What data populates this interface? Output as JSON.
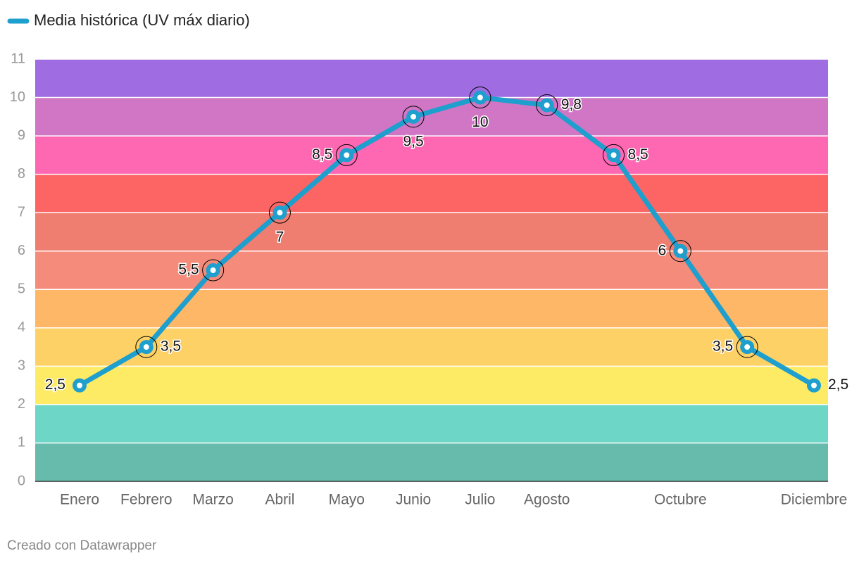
{
  "chart_data": {
    "type": "line",
    "categories": [
      "Enero",
      "Febrero",
      "Marzo",
      "Abril",
      "Mayo",
      "Junio",
      "Julio",
      "Agosto",
      null,
      "Octubre",
      null,
      "Diciembre"
    ],
    "series": [
      {
        "name": "Media histórica (UV máx diario)",
        "color": "#1e9fcd",
        "values": [
          2.5,
          3.5,
          5.5,
          7,
          8.5,
          9.5,
          10,
          9.8,
          8.5,
          6,
          3.5,
          2.5
        ],
        "value_labels": [
          "2,5",
          "3,5",
          "5,5",
          "7",
          "8,5",
          "9,5",
          "10",
          "9,8",
          "8,5",
          "6",
          "3,5",
          "2,5"
        ]
      }
    ],
    "ylim": [
      0,
      11
    ],
    "yticks": [
      0,
      1,
      2,
      3,
      4,
      5,
      6,
      7,
      8,
      9,
      10,
      11
    ],
    "grid": true,
    "band_colors": [
      "#66bbac",
      "#6dd6c6",
      "#fdeb65",
      "#fed166",
      "#fdb767",
      "#f58b7a",
      "#ef7d70",
      "#fd6565",
      "#fe67b2",
      "#d076c5",
      "#9f6ce2"
    ]
  },
  "credit": "Creado con Datawrapper"
}
